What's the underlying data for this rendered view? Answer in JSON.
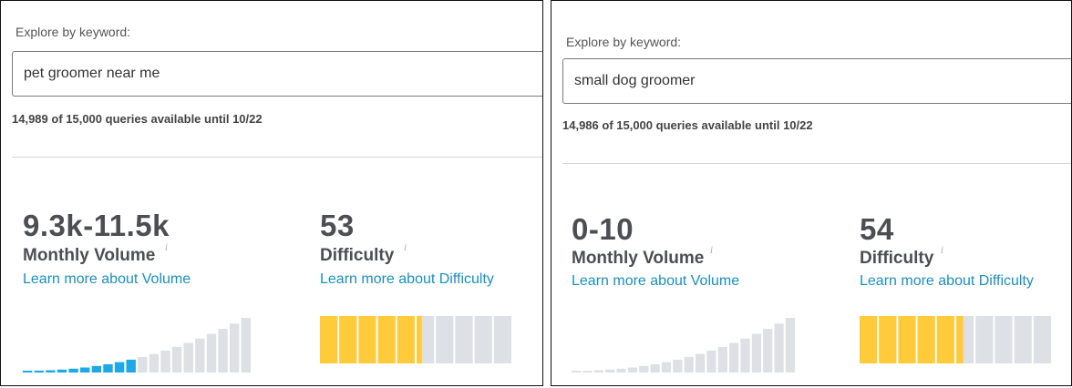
{
  "colors": {
    "volume_active": "#1fa8e8",
    "volume_inactive": "#dde1e5",
    "difficulty_filled": "#ffcb3a",
    "difficulty_empty": "#dde1e5",
    "link": "#1a8fc2"
  },
  "panels": [
    {
      "explore_label": "Explore by keyword:",
      "keyword": "pet groomer near me",
      "quota_text": "14,989 of 15,000 queries available until 10/22",
      "volume": {
        "value": "9.3k-11.5k",
        "label": "Monthly Volume",
        "info_icon": "i",
        "link": "Learn more about Volume",
        "active_bars": 10
      },
      "difficulty": {
        "value": "53",
        "label": "Difficulty",
        "info_icon": "i",
        "link": "Learn more about Difficulty",
        "level": 53
      }
    },
    {
      "explore_label": "Explore by keyword:",
      "keyword": "small dog groomer",
      "quota_text": "14,986 of 15,000 queries available until 10/22",
      "volume": {
        "value": "0-10",
        "label": "Monthly Volume",
        "info_icon": "i",
        "link": "Learn more about Volume",
        "active_bars": 0
      },
      "difficulty": {
        "value": "54",
        "label": "Difficulty",
        "info_icon": "i",
        "link": "Learn more about Difficulty",
        "level": 54
      }
    }
  ]
}
